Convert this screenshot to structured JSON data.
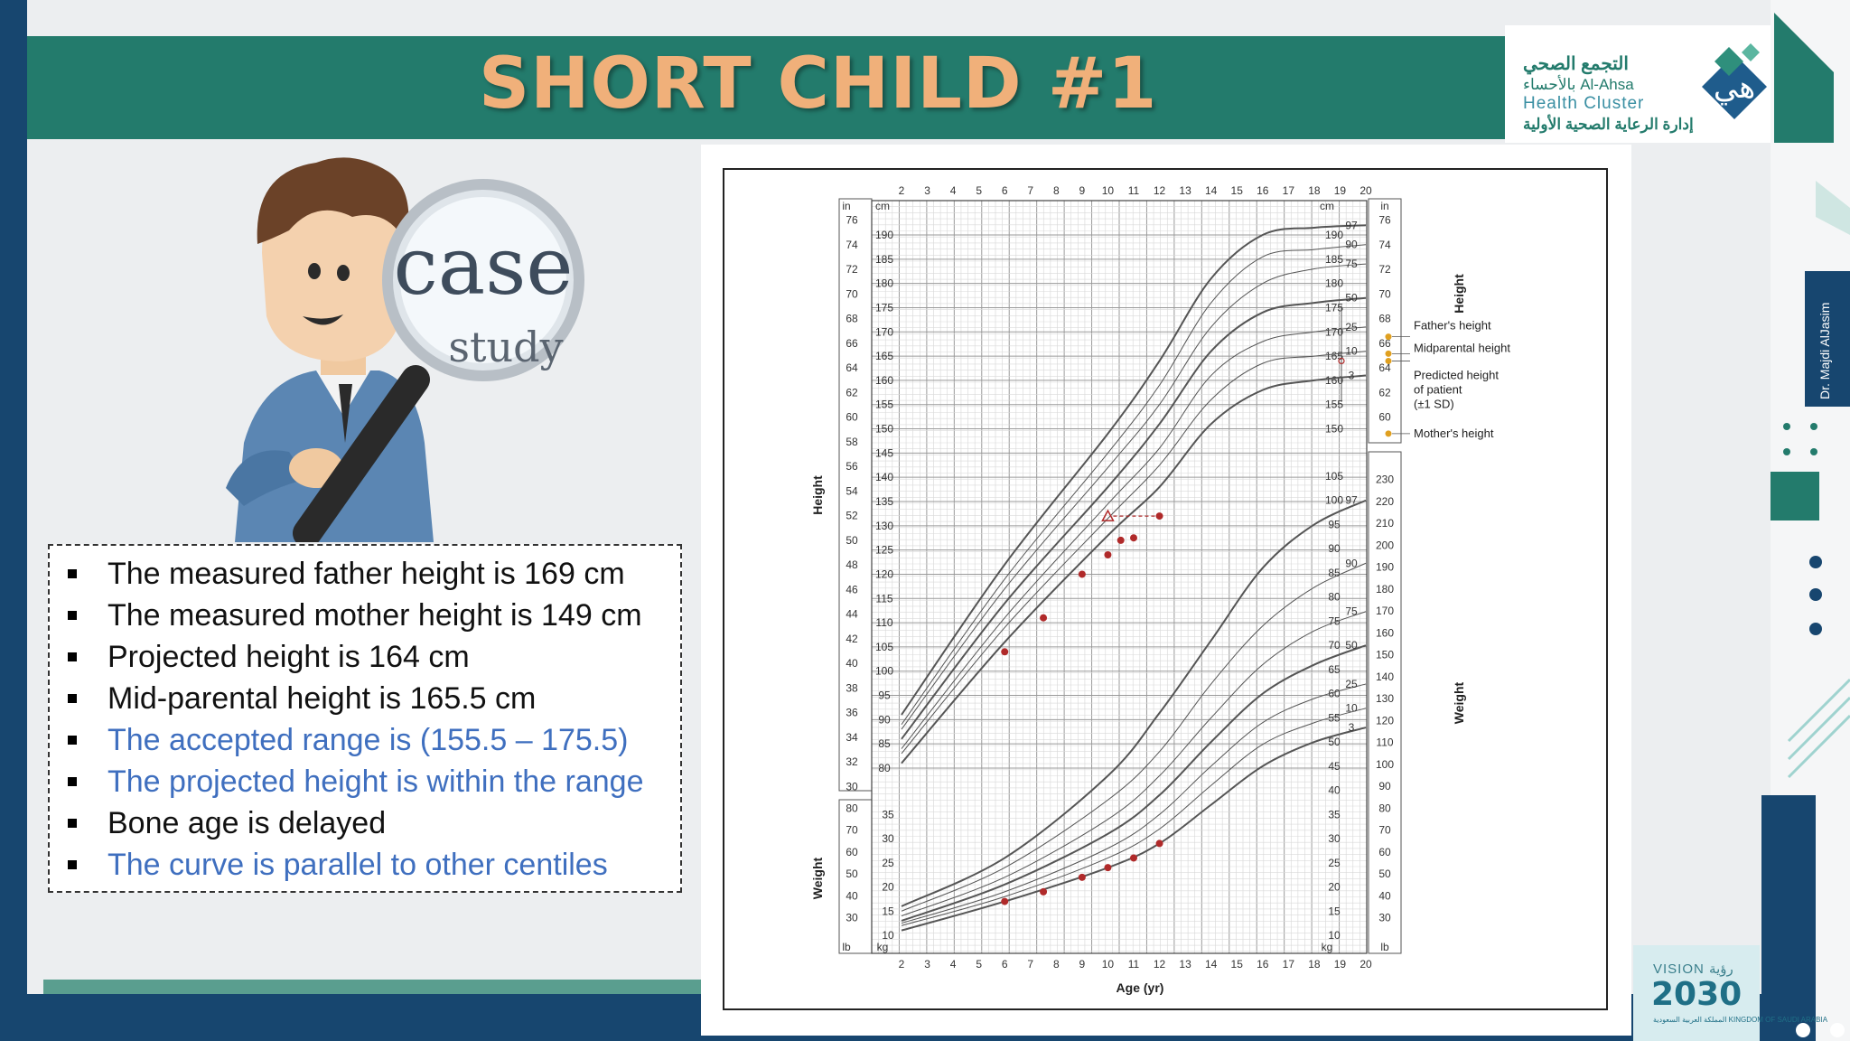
{
  "slide": {
    "title": "SHORT CHILD #1",
    "author": "Dr. Majdi AlJasim",
    "logo": {
      "arabic_line1": "التجمع الصحي",
      "arabic_line2": "بالأحساء Al-Ahsa",
      "english": "Health Cluster",
      "arabic_line3": "إدارة الرعاية الصحية الأولية"
    },
    "vision": {
      "label_en": "VISION",
      "label_ar": "رؤية",
      "year": "2030",
      "sub": "المملكة العربية السعودية KINGDOM OF SAUDI ARABIA"
    },
    "case_study": {
      "word1": "case",
      "word2": "study"
    },
    "bullets": [
      {
        "text": "The measured father height is 169 cm",
        "color": "#111111"
      },
      {
        "text": "The measured mother height is 149 cm",
        "color": "#111111"
      },
      {
        "text": "Projected height is 164 cm",
        "color": "#111111"
      },
      {
        "text": "Mid-parental height is 165.5 cm",
        "color": "#111111"
      },
      {
        "text": "The accepted range is (155.5 – 175.5)",
        "color": "#3f6fbf"
      },
      {
        "text": "The projected height is within the range",
        "color": "#3f6fbf"
      },
      {
        "text": "Bone age is delayed",
        "color": "#111111"
      },
      {
        "text": "The curve is parallel to other centiles",
        "color": "#3f6fbf"
      }
    ]
  },
  "colors": {
    "title_banner": "#237b6c",
    "title_text": "#f0b07a",
    "navy": "#17466f",
    "accent_blue": "#3f6fbf",
    "plot_point": "#b02a2a",
    "parent_marker": "#e0a020"
  },
  "chart_data": {
    "type": "line",
    "xlabel": "Age (yr)",
    "x_ticks": [
      "2",
      "3",
      "4",
      "5",
      "6",
      "7",
      "8",
      "9",
      "10",
      "11",
      "12",
      "13",
      "14",
      "15",
      "16",
      "17",
      "18",
      "19",
      "20"
    ],
    "xlim": [
      2,
      20
    ],
    "height_axis": {
      "label": "Height",
      "unit_cm": "cm",
      "unit_in": "in",
      "cm_ticks": [
        "190",
        "185",
        "180",
        "175",
        "170",
        "165",
        "160",
        "155",
        "150",
        "145",
        "140",
        "135",
        "130",
        "125",
        "120",
        "115",
        "110",
        "105",
        "100",
        "95",
        "90",
        "85",
        "80"
      ],
      "in_ticks": [
        "76",
        "74",
        "72",
        "70",
        "68",
        "66",
        "64",
        "62",
        "60",
        "58",
        "56",
        "54",
        "52",
        "50",
        "48",
        "46",
        "44",
        "42",
        "40",
        "38",
        "36",
        "34",
        "32",
        "30"
      ],
      "right_cm_ticks": [
        "190",
        "185",
        "180",
        "175",
        "170",
        "165",
        "160",
        "155",
        "150"
      ],
      "right_in_ticks": [
        "76",
        "74",
        "72",
        "70",
        "68",
        "66",
        "64",
        "62",
        "60"
      ]
    },
    "weight_axis": {
      "label": "Weight",
      "unit_kg": "kg",
      "unit_lb": "lb",
      "left_kg_ticks": [
        "35",
        "30",
        "25",
        "20",
        "15",
        "10"
      ],
      "left_lb_ticks": [
        "80",
        "70",
        "60",
        "50",
        "40",
        "30"
      ],
      "right_kg_ticks": [
        "105",
        "100",
        "95",
        "90",
        "85",
        "80",
        "75",
        "70",
        "65",
        "60",
        "55",
        "50",
        "45",
        "40",
        "35",
        "30",
        "25",
        "20",
        "15",
        "10"
      ],
      "right_lb_ticks": [
        "230",
        "220",
        "210",
        "200",
        "190",
        "180",
        "170",
        "160",
        "150",
        "140",
        "130",
        "120",
        "110",
        "100",
        "90",
        "80",
        "70",
        "60",
        "50",
        "40",
        "30"
      ]
    },
    "height_centiles": [
      {
        "name": "97",
        "values": [
          [
            2,
            91
          ],
          [
            6,
            122
          ],
          [
            10,
            149
          ],
          [
            12,
            164
          ],
          [
            14,
            181
          ],
          [
            16,
            190
          ],
          [
            18,
            191.5
          ],
          [
            20,
            192
          ]
        ]
      },
      {
        "name": "90",
        "values": [
          [
            2,
            89
          ],
          [
            6,
            119
          ],
          [
            10,
            145
          ],
          [
            12,
            159
          ],
          [
            14,
            176
          ],
          [
            16,
            185.5
          ],
          [
            18,
            187
          ],
          [
            20,
            188
          ]
        ]
      },
      {
        "name": "75",
        "values": [
          [
            2,
            88
          ],
          [
            6,
            117
          ],
          [
            10,
            142
          ],
          [
            12,
            155
          ],
          [
            14,
            171
          ],
          [
            16,
            180
          ],
          [
            18,
            183
          ],
          [
            20,
            184
          ]
        ]
      },
      {
        "name": "50",
        "values": [
          [
            2,
            86
          ],
          [
            6,
            114
          ],
          [
            10,
            138
          ],
          [
            12,
            151
          ],
          [
            14,
            166
          ],
          [
            16,
            174
          ],
          [
            18,
            176
          ],
          [
            20,
            177
          ]
        ]
      },
      {
        "name": "25",
        "values": [
          [
            2,
            84
          ],
          [
            6,
            111
          ],
          [
            10,
            134.5
          ],
          [
            12,
            146
          ],
          [
            14,
            161
          ],
          [
            16,
            168
          ],
          [
            18,
            170
          ],
          [
            20,
            171
          ]
        ]
      },
      {
        "name": "10",
        "values": [
          [
            2,
            83
          ],
          [
            6,
            109
          ],
          [
            10,
            131.5
          ],
          [
            12,
            142.5
          ],
          [
            14,
            156
          ],
          [
            16,
            163.5
          ],
          [
            18,
            165
          ],
          [
            20,
            166
          ]
        ]
      },
      {
        "name": "3",
        "values": [
          [
            2,
            81
          ],
          [
            6,
            106
          ],
          [
            10,
            128
          ],
          [
            12,
            138
          ],
          [
            14,
            151
          ],
          [
            16,
            158
          ],
          [
            18,
            160
          ],
          [
            20,
            161
          ]
        ]
      }
    ],
    "weight_centiles": [
      {
        "name": "97",
        "values": [
          [
            2,
            16
          ],
          [
            6,
            26
          ],
          [
            10,
            43
          ],
          [
            12,
            56
          ],
          [
            14,
            71
          ],
          [
            16,
            86
          ],
          [
            18,
            95
          ],
          [
            20,
            100
          ]
        ]
      },
      {
        "name": "90",
        "values": [
          [
            2,
            15
          ],
          [
            6,
            24
          ],
          [
            10,
            38
          ],
          [
            12,
            48
          ],
          [
            14,
            62
          ],
          [
            16,
            74
          ],
          [
            18,
            82
          ],
          [
            20,
            87
          ]
        ]
      },
      {
        "name": "75",
        "values": [
          [
            2,
            14
          ],
          [
            6,
            22
          ],
          [
            10,
            34
          ],
          [
            12,
            43
          ],
          [
            14,
            55
          ],
          [
            16,
            66
          ],
          [
            18,
            73
          ],
          [
            20,
            77
          ]
        ]
      },
      {
        "name": "50",
        "values": [
          [
            2,
            13
          ],
          [
            6,
            20.5
          ],
          [
            10,
            31
          ],
          [
            12,
            39
          ],
          [
            14,
            50
          ],
          [
            16,
            60
          ],
          [
            18,
            66
          ],
          [
            20,
            70
          ]
        ]
      },
      {
        "name": "25",
        "values": [
          [
            2,
            12.5
          ],
          [
            6,
            19
          ],
          [
            10,
            28
          ],
          [
            12,
            35
          ],
          [
            14,
            45
          ],
          [
            16,
            54
          ],
          [
            18,
            59
          ],
          [
            20,
            62
          ]
        ]
      },
      {
        "name": "10",
        "values": [
          [
            2,
            12
          ],
          [
            6,
            18
          ],
          [
            10,
            26
          ],
          [
            12,
            32
          ],
          [
            14,
            41
          ],
          [
            16,
            49.5
          ],
          [
            18,
            54
          ],
          [
            20,
            57
          ]
        ]
      },
      {
        "name": "3",
        "values": [
          [
            2,
            11
          ],
          [
            6,
            17
          ],
          [
            10,
            24
          ],
          [
            12,
            29
          ],
          [
            14,
            37
          ],
          [
            16,
            45
          ],
          [
            18,
            50
          ],
          [
            20,
            53
          ]
        ]
      }
    ],
    "patient_height": [
      [
        6,
        104
      ],
      [
        7.5,
        111
      ],
      [
        9,
        120
      ],
      [
        10,
        124
      ],
      [
        10.5,
        127
      ],
      [
        11,
        127.5
      ],
      [
        12,
        132
      ]
    ],
    "bone_age_point": [
      10,
      132
    ],
    "patient_weight": [
      [
        6,
        17
      ],
      [
        7.5,
        19
      ],
      [
        9,
        22
      ],
      [
        10,
        24
      ],
      [
        11,
        26
      ],
      [
        12,
        29
      ]
    ],
    "parental_legend": [
      {
        "label": "Father's height",
        "value_cm": 169
      },
      {
        "label": "Midparental height",
        "value_cm": 165.5
      },
      {
        "label": "Predicted height",
        "label2": "of patient",
        "label3": "(±1 SD)",
        "value_cm": 164
      },
      {
        "label": "Mother's height",
        "value_cm": 149
      }
    ]
  }
}
